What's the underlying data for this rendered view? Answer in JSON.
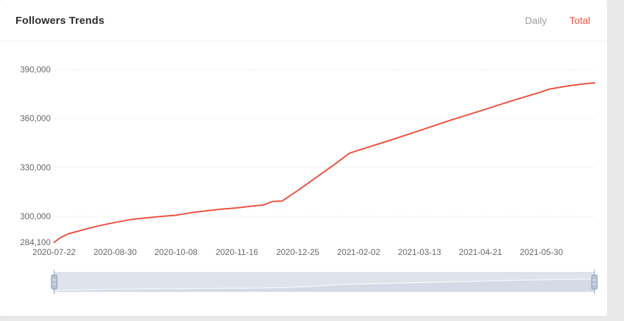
{
  "header": {
    "title": "Followers Trends",
    "tabs": [
      {
        "id": "daily",
        "label": "Daily",
        "active": false
      },
      {
        "id": "total",
        "label": "Total",
        "active": true
      }
    ]
  },
  "colors": {
    "accent": "#ee4f3d",
    "inactive_tab": "#9d9d9d",
    "axis_label": "#666666",
    "grid_line": "#e7e7e7",
    "slider_fill": "#dfe3ec",
    "slider_shadow_fill": "#d4dae6",
    "slider_line": "#f7f8fb",
    "slider_handle_fill": "#b7c2d3",
    "slider_handle_stroke": "#8c9fb9"
  },
  "chart_data": {
    "type": "line",
    "title": "Followers Trends",
    "active_series": "Total",
    "legend": "none",
    "grid": "horizontal dotted",
    "x_start_date": "2020-07-22",
    "x_tick_labels": [
      "2020-07-22",
      "2020-08-30",
      "2020-10-08",
      "2020-11-16",
      "2020-12-25",
      "2021-02-02",
      "2021-03-13",
      "2021-04-21",
      "2021-05-30"
    ],
    "x_tick_days": [
      0,
      39,
      78,
      117,
      156,
      195,
      234,
      273,
      312
    ],
    "x_range_days": [
      0,
      346
    ],
    "y_tick_labels": [
      "284,100",
      "300,000",
      "330,000",
      "360,000",
      "390,000"
    ],
    "y_tick_values": [
      284100,
      300000,
      330000,
      360000,
      390000
    ],
    "y_gridline_values": [
      300000,
      330000,
      360000,
      390000
    ],
    "y_range": [
      284100,
      390000
    ],
    "line_color": "#ee4f3d",
    "points_day_value": [
      [
        0,
        284100
      ],
      [
        4,
        287000
      ],
      [
        9,
        289300
      ],
      [
        15,
        290800
      ],
      [
        22,
        292700
      ],
      [
        30,
        294500
      ],
      [
        39,
        296300
      ],
      [
        50,
        298200
      ],
      [
        57,
        298900
      ],
      [
        68,
        299900
      ],
      [
        78,
        300700
      ],
      [
        88,
        302300
      ],
      [
        97,
        303400
      ],
      [
        107,
        304400
      ],
      [
        117,
        305200
      ],
      [
        127,
        306300
      ],
      [
        134,
        307000
      ],
      [
        140,
        309200
      ],
      [
        146,
        309400
      ],
      [
        157,
        316500
      ],
      [
        168,
        324000
      ],
      [
        180,
        332200
      ],
      [
        189,
        338700
      ],
      [
        195,
        340600
      ],
      [
        214,
        346300
      ],
      [
        234,
        352600
      ],
      [
        253,
        358700
      ],
      [
        273,
        364700
      ],
      [
        293,
        370800
      ],
      [
        312,
        376300
      ],
      [
        317,
        378000
      ],
      [
        330,
        380100
      ],
      [
        340,
        381300
      ],
      [
        346,
        381800
      ]
    ],
    "datazoom": {
      "full_range_selected": true
    }
  }
}
